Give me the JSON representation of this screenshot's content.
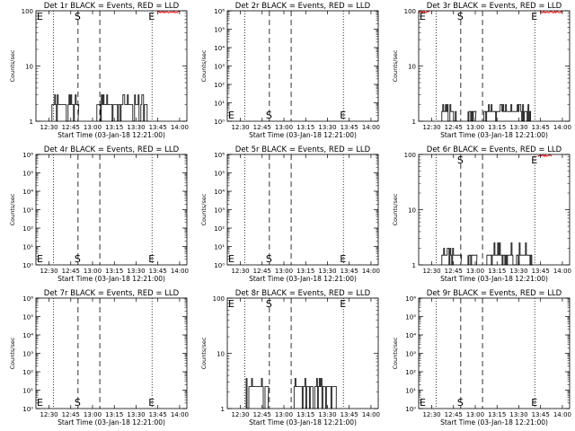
{
  "chart_data": [
    {
      "type": "line",
      "title": "Det 1r BLACK = Events, RED = LLD",
      "xlabel": "Start Time (03-Jan-18 12:21:00)",
      "ylabel": "Counts/sec",
      "x_ticks": [
        "12:30",
        "12:45",
        "13:00",
        "13:15",
        "13:30",
        "13:45",
        "14:00"
      ],
      "xlim": [
        "12:21",
        "14:05"
      ],
      "ylog": true,
      "y_ticks": [
        "1",
        "10",
        "100"
      ],
      "ylim": [
        1,
        100
      ],
      "event_lines": {
        "dotted": [
          "12:33",
          "13:41"
        ],
        "dashed": [
          "12:50",
          "13:05"
        ]
      },
      "markers": [
        {
          "label": "E",
          "time": "12:21",
          "pos": "top"
        },
        {
          "label": "S",
          "time": "12:50",
          "pos": "top"
        },
        {
          "label": "E",
          "time": "13:41",
          "pos": "top"
        }
      ],
      "series": [
        {
          "color": "#000000",
          "segments": [
            {
              "start": "12:32",
              "end": "12:50",
              "level": 2,
              "spike": 3
            },
            {
              "start": "13:03",
              "end": "13:38",
              "level": 2,
              "spike": 3
            }
          ]
        },
        {
          "color": "#ff0000",
          "segments": [
            {
              "start": "13:45",
              "end": "14:00",
              "level": 95
            }
          ]
        }
      ]
    },
    {
      "type": "line",
      "title": "Det 2r BLACK = Events, RED = LLD",
      "xlabel": "Start Time (03-Jan-18 12:21:00)",
      "ylabel": "Counts/sec",
      "x_ticks": [
        "12:30",
        "12:45",
        "13:00",
        "13:15",
        "13:30",
        "13:45",
        "14:00"
      ],
      "xlim": [
        "12:21",
        "14:05"
      ],
      "ylog": true,
      "y_ticks": [
        "10⁰",
        "10¹",
        "10²",
        "10³",
        "10⁴",
        "10⁵",
        "10⁶"
      ],
      "ylim": [
        1,
        1000000
      ],
      "event_lines": {
        "dotted": [
          "12:33",
          "13:41"
        ],
        "dashed": [
          "12:50",
          "13:05"
        ]
      },
      "markers": [
        {
          "label": "E",
          "time": "12:21",
          "pos": "bottom"
        },
        {
          "label": "S",
          "time": "12:50",
          "pos": "bottom"
        },
        {
          "label": "E",
          "time": "13:41",
          "pos": "bottom"
        }
      ],
      "series": []
    },
    {
      "type": "line",
      "title": "Det 3r BLACK = Events, RED = LLD",
      "xlabel": "Start Time (03-Jan-18 12:21:00)",
      "ylabel": "Counts/sec",
      "x_ticks": [
        "12:30",
        "12:45",
        "13:00",
        "13:15",
        "13:30",
        "13:45",
        "14:00"
      ],
      "xlim": [
        "12:21",
        "14:05"
      ],
      "ylog": true,
      "y_ticks": [
        "1",
        "10",
        "100"
      ],
      "ylim": [
        1,
        100
      ],
      "event_lines": {
        "dotted": [
          "12:33",
          "13:41"
        ],
        "dashed": [
          "12:50",
          "13:05"
        ]
      },
      "markers": [
        {
          "label": "E",
          "time": "12:21",
          "pos": "top"
        },
        {
          "label": "S",
          "time": "12:50",
          "pos": "top"
        },
        {
          "label": "E",
          "time": "13:41",
          "pos": "top"
        }
      ],
      "series": [
        {
          "color": "#000000",
          "segments": [
            {
              "start": "12:37",
              "end": "12:48",
              "level": 1.5,
              "spike": 2
            },
            {
              "start": "12:55",
              "end": "13:00",
              "level": 1.5,
              "spike": 2
            },
            {
              "start": "13:06",
              "end": "13:38",
              "level": 1.5,
              "spike": 2
            }
          ]
        },
        {
          "color": "#ff0000",
          "segments": [
            {
              "start": "12:21",
              "end": "12:29",
              "level": 95
            },
            {
              "start": "13:45",
              "end": "14:00",
              "level": 95
            }
          ]
        }
      ]
    },
    {
      "type": "line",
      "title": "Det 4r BLACK = Events, RED = LLD",
      "xlabel": "Start Time (03-Jan-18 12:21:00)",
      "ylabel": "Counts/sec",
      "x_ticks": [
        "12:30",
        "12:45",
        "13:00",
        "13:15",
        "13:30",
        "13:45",
        "14:00"
      ],
      "xlim": [
        "12:21",
        "14:05"
      ],
      "ylog": true,
      "y_ticks": [
        "10⁰",
        "10¹",
        "10²",
        "10³",
        "10⁴",
        "10⁵",
        "10⁶"
      ],
      "ylim": [
        1,
        1000000
      ],
      "event_lines": {
        "dotted": [
          "12:33",
          "13:41"
        ],
        "dashed": [
          "12:50",
          "13:05"
        ]
      },
      "markers": [
        {
          "label": "E",
          "time": "12:21",
          "pos": "bottom"
        },
        {
          "label": "S",
          "time": "12:50",
          "pos": "bottom"
        },
        {
          "label": "E",
          "time": "13:41",
          "pos": "bottom"
        }
      ],
      "series": []
    },
    {
      "type": "line",
      "title": "Det 5r BLACK = Events, RED = LLD",
      "xlabel": "Start Time (03-Jan-18 12:21:00)",
      "ylabel": "Counts/sec",
      "x_ticks": [
        "12:30",
        "12:45",
        "13:00",
        "13:15",
        "13:30",
        "13:45",
        "14:00"
      ],
      "xlim": [
        "12:21",
        "14:05"
      ],
      "ylog": true,
      "y_ticks": [
        "10⁰",
        "10¹",
        "10²",
        "10³",
        "10⁴",
        "10⁵",
        "10⁶"
      ],
      "ylim": [
        1,
        1000000
      ],
      "event_lines": {
        "dotted": [
          "12:33",
          "13:41"
        ],
        "dashed": [
          "12:50",
          "13:05"
        ]
      },
      "markers": [
        {
          "label": "E",
          "time": "12:21",
          "pos": "bottom"
        },
        {
          "label": "S",
          "time": "12:50",
          "pos": "bottom"
        },
        {
          "label": "E",
          "time": "13:41",
          "pos": "bottom"
        }
      ],
      "series": []
    },
    {
      "type": "line",
      "title": "Det 6r BLACK = Events, RED = LLD",
      "xlabel": "Start Time (03-Jan-18 12:21:00)",
      "ylabel": "Counts/sec",
      "x_ticks": [
        "12:30",
        "12:45",
        "13:00",
        "13:15",
        "13:30",
        "13:45",
        "14:00"
      ],
      "xlim": [
        "12:21",
        "14:05"
      ],
      "ylog": true,
      "y_ticks": [
        "1",
        "10",
        "100"
      ],
      "ylim": [
        1,
        100
      ],
      "event_lines": {
        "dotted": [
          "12:33",
          "13:41"
        ],
        "dashed": [
          "12:50",
          "13:05"
        ]
      },
      "markers": [
        {
          "label": "S",
          "time": "12:50",
          "pos": "top"
        },
        {
          "label": "E",
          "time": "13:41",
          "pos": "top"
        }
      ],
      "series": [
        {
          "color": "#000000",
          "segments": [
            {
              "start": "12:37",
              "end": "12:50",
              "level": 1.5,
              "spike": 2
            },
            {
              "start": "12:55",
              "end": "13:01",
              "level": 1.5,
              "spike": 2
            },
            {
              "start": "13:08",
              "end": "13:39",
              "level": 1.5,
              "spike": 2.5
            }
          ]
        },
        {
          "color": "#ff0000",
          "segments": [
            {
              "start": "13:43",
              "end": "13:53",
              "level": 95
            }
          ]
        }
      ]
    },
    {
      "type": "line",
      "title": "Det 7r BLACK = Events, RED = LLD",
      "xlabel": "Start Time (03-Jan-18 12:21:00)",
      "ylabel": "Counts/sec",
      "x_ticks": [
        "12:30",
        "12:45",
        "13:00",
        "13:15",
        "13:30",
        "13:45",
        "14:00"
      ],
      "xlim": [
        "12:21",
        "14:05"
      ],
      "ylog": true,
      "y_ticks": [
        "10⁰",
        "10¹",
        "10²",
        "10³",
        "10⁴",
        "10⁵",
        "10⁶"
      ],
      "ylim": [
        1,
        1000000
      ],
      "event_lines": {
        "dotted": [
          "12:33",
          "13:41"
        ],
        "dashed": [
          "12:50",
          "13:05"
        ]
      },
      "markers": [
        {
          "label": "E",
          "time": "12:21",
          "pos": "bottom"
        },
        {
          "label": "S",
          "time": "12:50",
          "pos": "bottom"
        },
        {
          "label": "E",
          "time": "13:41",
          "pos": "bottom"
        }
      ],
      "series": []
    },
    {
      "type": "line",
      "title": "Det 8r BLACK = Events, RED = LLD",
      "xlabel": "Start Time (03-Jan-18 12:21:00)",
      "ylabel": "Counts/sec",
      "x_ticks": [
        "12:30",
        "12:45",
        "13:00",
        "13:15",
        "13:30",
        "13:45",
        "14:00"
      ],
      "xlim": [
        "12:21",
        "14:05"
      ],
      "ylog": true,
      "y_ticks": [
        "1",
        "10",
        "100"
      ],
      "ylim": [
        1,
        100
      ],
      "event_lines": {
        "dotted": [
          "12:33",
          "13:41"
        ],
        "dashed": [
          "12:50",
          "13:05"
        ]
      },
      "markers": [
        {
          "label": "E",
          "time": "12:21",
          "pos": "top"
        },
        {
          "label": "S",
          "time": "12:50",
          "pos": "top"
        },
        {
          "label": "E",
          "time": "13:41",
          "pos": "top"
        }
      ],
      "series": [
        {
          "color": "#000000",
          "segments": [
            {
              "start": "12:34",
              "end": "12:49",
              "level": 2.5,
              "spike": 3.5
            },
            {
              "start": "13:07",
              "end": "13:36",
              "level": 2.5,
              "spike": 3.5
            }
          ]
        }
      ]
    },
    {
      "type": "line",
      "title": "Det 9r BLACK = Events, RED = LLD",
      "xlabel": "Start Time (03-Jan-18 12:21:00)",
      "ylabel": "Counts/sec",
      "x_ticks": [
        "12:30",
        "12:45",
        "13:00",
        "13:15",
        "13:30",
        "13:45",
        "14:00"
      ],
      "xlim": [
        "12:21",
        "14:05"
      ],
      "ylog": true,
      "y_ticks": [
        "10⁰",
        "10¹",
        "10²",
        "10³",
        "10⁴",
        "10⁵",
        "10⁶"
      ],
      "ylim": [
        1,
        1000000
      ],
      "event_lines": {
        "dotted": [
          "12:33",
          "13:41"
        ],
        "dashed": [
          "12:50",
          "13:05"
        ]
      },
      "markers": [
        {
          "label": "E",
          "time": "12:21",
          "pos": "bottom"
        },
        {
          "label": "S",
          "time": "12:50",
          "pos": "bottom"
        },
        {
          "label": "E",
          "time": "13:41",
          "pos": "bottom"
        }
      ],
      "series": []
    }
  ]
}
